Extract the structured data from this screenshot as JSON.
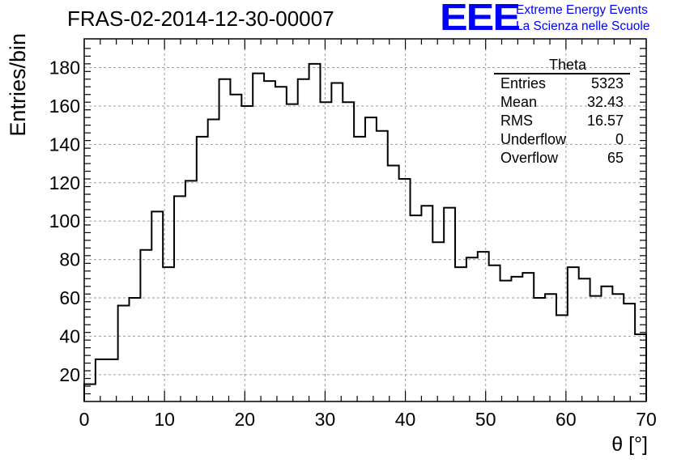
{
  "header": {
    "title": "FRAS-02-2014-12-30-00007",
    "logo_text": "EEE",
    "logo_line1": "Extreme Energy Events",
    "logo_line2": "La Scienza nelle Scuole"
  },
  "stats": {
    "title": "Theta",
    "rows": [
      {
        "label": "Entries",
        "value": "5323"
      },
      {
        "label": "Mean",
        "value": "32.43"
      },
      {
        "label": "RMS",
        "value": "16.57"
      },
      {
        "label": "Underflow",
        "value": "0"
      },
      {
        "label": "Overflow",
        "value": "65"
      }
    ]
  },
  "chart_data": {
    "type": "histogram",
    "title": "FRAS-02-2014-12-30-00007",
    "xlabel": "θ [°]",
    "ylabel": "Entries/bin",
    "xlim": [
      0,
      70
    ],
    "ylim": [
      6,
      195
    ],
    "x_ticks": [
      0,
      10,
      20,
      30,
      40,
      50,
      60,
      70
    ],
    "y_ticks": [
      20,
      40,
      60,
      80,
      100,
      120,
      140,
      160,
      180
    ],
    "grid": true,
    "bin_width": 1.4,
    "values": [
      15,
      28,
      28,
      56,
      60,
      85,
      105,
      76,
      113,
      121,
      144,
      153,
      174,
      166,
      160,
      177,
      173,
      170,
      161,
      174,
      182,
      162,
      172,
      162,
      144,
      154,
      147,
      129,
      122,
      103,
      108,
      89,
      107,
      76,
      81,
      84,
      77,
      69,
      71,
      73,
      60,
      62,
      51,
      76,
      70,
      61,
      66,
      62,
      57,
      41
    ]
  }
}
